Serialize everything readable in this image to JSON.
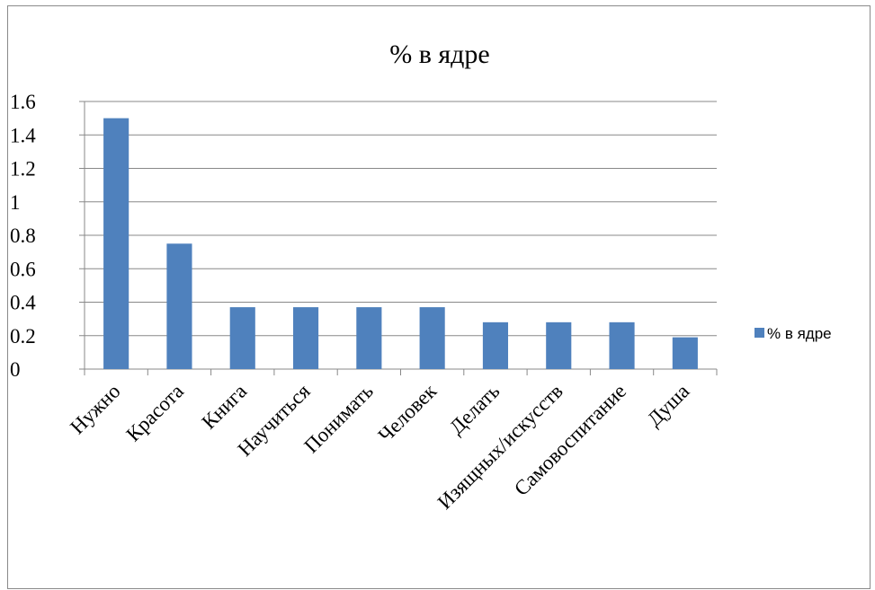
{
  "chart_data": {
    "type": "bar",
    "title": "% в ядре",
    "xlabel": "",
    "ylabel": "",
    "categories": [
      "Нужно",
      "Красота",
      "Книга",
      "Научиться",
      "Понимать",
      "Человек",
      "Делать",
      "Изящных/искусств",
      "Самовоспитание",
      "Душа"
    ],
    "series": [
      {
        "name": "% в ядре",
        "values": [
          1.5,
          0.75,
          0.37,
          0.37,
          0.37,
          0.37,
          0.28,
          0.28,
          0.28,
          0.19
        ],
        "color": "#4f81bd"
      }
    ],
    "ylim": [
      0,
      1.6
    ],
    "yticks": [
      "0",
      "0.2",
      "0.4",
      "0.6",
      "0.8",
      "1",
      "1.2",
      "1.4",
      "1.6"
    ],
    "grid": true,
    "legend_position": "right",
    "gridline_color": "#888888"
  }
}
